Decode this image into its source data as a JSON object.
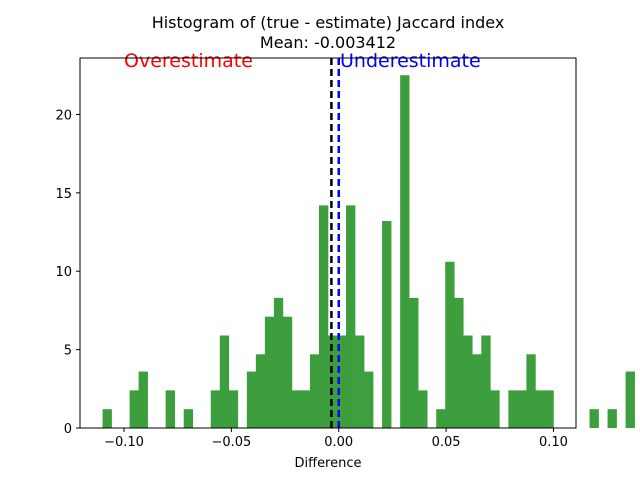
{
  "chart_data": {
    "type": "bar",
    "title_line1": "Histogram of (true - estimate) Jaccard index",
    "title_line2": "Mean: -0.003412",
    "xlabel": "Difference",
    "ylabel": "",
    "xlim": [
      -0.1205,
      0.1105
    ],
    "ylim": [
      0,
      23.6
    ],
    "xticks": [
      {
        "value": -0.1,
        "label": "−0.10"
      },
      {
        "value": -0.05,
        "label": "−0.05"
      },
      {
        "value": 0.0,
        "label": "0.00"
      },
      {
        "value": 0.05,
        "label": "0.05"
      },
      {
        "value": 0.1,
        "label": "0.10"
      }
    ],
    "yticks": [
      {
        "value": 0,
        "label": "0"
      },
      {
        "value": 5,
        "label": "5"
      },
      {
        "value": 10,
        "label": "10"
      },
      {
        "value": 15,
        "label": "15"
      },
      {
        "value": 20,
        "label": "20"
      }
    ],
    "bar_color": "#3d9e3d",
    "bin_start": -0.11,
    "bin_width": 0.0042,
    "values": [
      1.2,
      0,
      0,
      2.4,
      3.6,
      0,
      0,
      2.4,
      0,
      1.2,
      0,
      0,
      2.4,
      5.9,
      2.4,
      0,
      3.6,
      4.7,
      7.1,
      8.3,
      7.1,
      2.4,
      2.4,
      4.7,
      14.2,
      5.9,
      5.9,
      14.2,
      5.9,
      3.6,
      0,
      13.2,
      0,
      22.5,
      8.3,
      2.4,
      0,
      1.2,
      10.6,
      8.3,
      5.9,
      4.7,
      5.9,
      2.4,
      0,
      2.4,
      2.4,
      4.7,
      2.4,
      2.4,
      0,
      0,
      0,
      0,
      1.2,
      0,
      1.2,
      0,
      3.6
    ],
    "vlines": [
      {
        "name": "mean",
        "x": -0.003412,
        "color": "#000000",
        "style": "dashed"
      },
      {
        "name": "zero",
        "x": 0.0,
        "color": "#0000ff",
        "style": "dashed"
      }
    ],
    "annotations": [
      {
        "name": "overestimate",
        "text": "Overestimate",
        "color": "#ff0000"
      },
      {
        "name": "underestimate",
        "text": "Underestimate",
        "color": "#0000ff"
      }
    ],
    "grid": false,
    "legend": "none"
  }
}
